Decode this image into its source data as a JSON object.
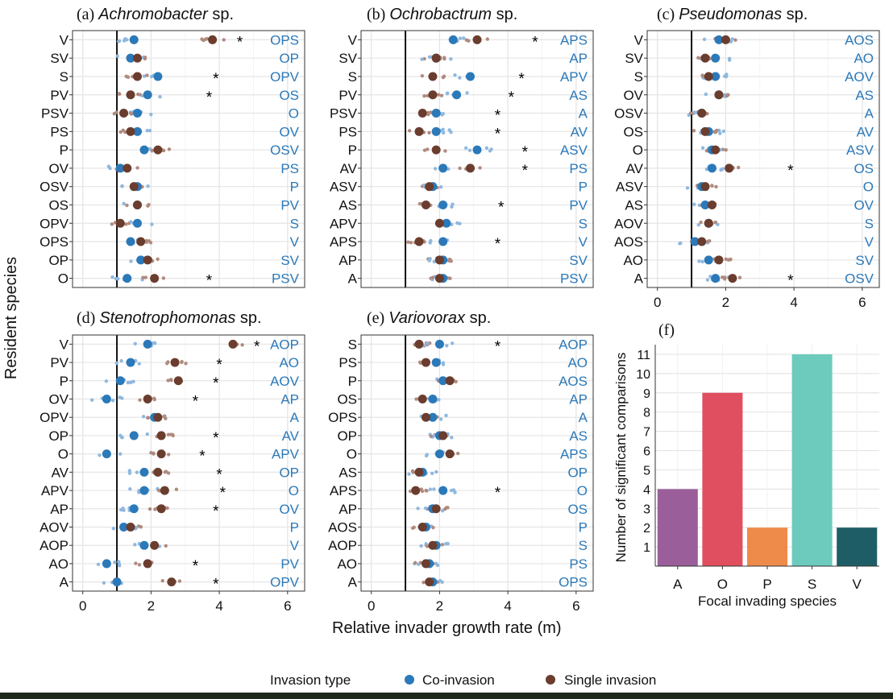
{
  "figure": {
    "y_axis_label": "Resident species",
    "x_axis_label": "Relative invader growth rate (m)",
    "legend": {
      "title": "Invasion type",
      "items": [
        {
          "label": "Co-invasion",
          "color": "#2b79b9"
        },
        {
          "label": "Single invasion",
          "color": "#6a3d2e"
        }
      ]
    },
    "colors": {
      "co": "#2b79b9",
      "co_light": "#8fb8df",
      "single": "#6a3d2e",
      "single_light": "#b08a7e",
      "label_text": "#2b79b9",
      "grid": "#e5e5e5"
    },
    "star": "*"
  },
  "chart_data": [
    {
      "type": "scatter",
      "panel": "a",
      "title_prefix": "(a)",
      "title_italic": "Achromobacter",
      "title_suffix": "sp.",
      "xlim": [
        -0.3,
        6.5
      ],
      "xticks": [
        0,
        2,
        4,
        6
      ],
      "show_xticks": false,
      "ref_line": 1,
      "rows": [
        {
          "resident": "V",
          "coinv": "OPS",
          "co": 1.5,
          "single": 3.8,
          "star": 4.6
        },
        {
          "resident": "SV",
          "coinv": "OP",
          "co": 1.4,
          "single": 1.6,
          "star": null
        },
        {
          "resident": "S",
          "coinv": "OPV",
          "co": 2.2,
          "single": 1.6,
          "star": 3.9
        },
        {
          "resident": "PV",
          "coinv": "OS",
          "co": 1.9,
          "single": 1.4,
          "star": 3.7
        },
        {
          "resident": "PSV",
          "coinv": "O",
          "co": 1.6,
          "single": 1.2,
          "star": null
        },
        {
          "resident": "PS",
          "coinv": "OV",
          "co": 1.6,
          "single": 1.4,
          "star": null
        },
        {
          "resident": "P",
          "coinv": "OSV",
          "co": 1.8,
          "single": 2.2,
          "star": null
        },
        {
          "resident": "OV",
          "coinv": "PS",
          "co": 1.1,
          "single": 1.3,
          "star": null
        },
        {
          "resident": "OSV",
          "coinv": "P",
          "co": 1.6,
          "single": 1.5,
          "star": null
        },
        {
          "resident": "OS",
          "coinv": "PV",
          "co": 1.6,
          "single": 1.6,
          "star": null
        },
        {
          "resident": "OPV",
          "coinv": "S",
          "co": 1.6,
          "single": 1.1,
          "star": null
        },
        {
          "resident": "OPS",
          "coinv": "V",
          "co": 1.4,
          "single": 1.7,
          "star": null
        },
        {
          "resident": "OP",
          "coinv": "SV",
          "co": 1.7,
          "single": 1.9,
          "star": null
        },
        {
          "resident": "O",
          "coinv": "PSV",
          "co": 1.3,
          "single": 2.1,
          "star": 3.7
        }
      ]
    },
    {
      "type": "scatter",
      "panel": "b",
      "title_prefix": "(b)",
      "title_italic": "Ochrobactrum",
      "title_suffix": "sp.",
      "xlim": [
        -0.3,
        6.5
      ],
      "xticks": [
        0,
        2,
        4,
        6
      ],
      "show_xticks": false,
      "ref_line": 1,
      "rows": [
        {
          "resident": "V",
          "coinv": "APS",
          "co": 2.4,
          "single": 3.1,
          "star": 4.8
        },
        {
          "resident": "SV",
          "coinv": "AP",
          "co": 1.9,
          "single": 1.9,
          "star": null
        },
        {
          "resident": "S",
          "coinv": "APV",
          "co": 2.9,
          "single": 1.8,
          "star": 4.4
        },
        {
          "resident": "PV",
          "coinv": "AS",
          "co": 2.5,
          "single": 1.8,
          "star": 4.1
        },
        {
          "resident": "PSV",
          "coinv": "A",
          "co": 1.9,
          "single": 1.5,
          "star": 3.7
        },
        {
          "resident": "PS",
          "coinv": "AV",
          "co": 1.9,
          "single": 1.4,
          "star": 3.7
        },
        {
          "resident": "P",
          "coinv": "ASV",
          "co": 3.1,
          "single": 1.9,
          "star": 4.5
        },
        {
          "resident": "AV",
          "coinv": "PS",
          "co": 2.1,
          "single": 2.9,
          "star": 4.5
        },
        {
          "resident": "ASV",
          "coinv": "P",
          "co": 1.8,
          "single": 1.7,
          "star": null
        },
        {
          "resident": "AS",
          "coinv": "PV",
          "co": 2.1,
          "single": 1.6,
          "star": 3.8
        },
        {
          "resident": "APV",
          "coinv": "S",
          "co": 2.2,
          "single": 2.0,
          "star": null
        },
        {
          "resident": "APS",
          "coinv": "V",
          "co": 2.1,
          "single": 1.4,
          "star": 3.7
        },
        {
          "resident": "AP",
          "coinv": "SV",
          "co": 2.1,
          "single": 2.0,
          "star": null
        },
        {
          "resident": "A",
          "coinv": "PSV",
          "co": 2.1,
          "single": 2.0,
          "star": null
        }
      ]
    },
    {
      "type": "scatter",
      "panel": "c",
      "title_prefix": "(c)",
      "title_italic": "Pseudomonas",
      "title_suffix": "sp.",
      "xlim": [
        -0.3,
        6.5
      ],
      "xticks": [
        0,
        2,
        4,
        6
      ],
      "show_xticks": true,
      "ref_line": 1,
      "rows": [
        {
          "resident": "V",
          "coinv": "AOS",
          "co": 1.8,
          "single": 2.0,
          "star": null
        },
        {
          "resident": "SV",
          "coinv": "AO",
          "co": 1.7,
          "single": 1.4,
          "star": null
        },
        {
          "resident": "S",
          "coinv": "AOV",
          "co": 1.7,
          "single": 1.5,
          "star": null
        },
        {
          "resident": "OV",
          "coinv": "AS",
          "co": 1.8,
          "single": 1.8,
          "star": null
        },
        {
          "resident": "OSV",
          "coinv": "A",
          "co": 1.3,
          "single": 1.3,
          "star": null
        },
        {
          "resident": "OS",
          "coinv": "AV",
          "co": 1.5,
          "single": 1.4,
          "star": null
        },
        {
          "resident": "O",
          "coinv": "ASV",
          "co": 1.6,
          "single": 1.7,
          "star": null
        },
        {
          "resident": "AV",
          "coinv": "OS",
          "co": 1.6,
          "single": 2.1,
          "star": 3.9
        },
        {
          "resident": "ASV",
          "coinv": "O",
          "co": 1.3,
          "single": 1.4,
          "star": null
        },
        {
          "resident": "AS",
          "coinv": "OV",
          "co": 1.4,
          "single": 1.6,
          "star": null
        },
        {
          "resident": "AOV",
          "coinv": "S",
          "co": 1.5,
          "single": 1.5,
          "star": null
        },
        {
          "resident": "AOS",
          "coinv": "V",
          "co": 1.1,
          "single": 1.3,
          "star": null
        },
        {
          "resident": "AO",
          "coinv": "SV",
          "co": 1.5,
          "single": 1.8,
          "star": null
        },
        {
          "resident": "A",
          "coinv": "OSV",
          "co": 1.7,
          "single": 2.2,
          "star": 3.9
        }
      ]
    },
    {
      "type": "scatter",
      "panel": "d",
      "title_prefix": "(d)",
      "title_italic": "Stenotrophomonas",
      "title_suffix": "sp.",
      "xlim": [
        -0.3,
        6.5
      ],
      "xticks": [
        0,
        2,
        4,
        6
      ],
      "show_xticks": true,
      "ref_line": 1,
      "rows": [
        {
          "resident": "V",
          "coinv": "AOP",
          "co": 1.9,
          "single": 4.4,
          "star": 5.1
        },
        {
          "resident": "PV",
          "coinv": "AO",
          "co": 1.4,
          "single": 2.7,
          "star": 4.0
        },
        {
          "resident": "P",
          "coinv": "AOV",
          "co": 1.1,
          "single": 2.8,
          "star": 3.9
        },
        {
          "resident": "OV",
          "coinv": "AP",
          "co": 0.7,
          "single": 1.9,
          "star": 3.3
        },
        {
          "resident": "OPV",
          "coinv": "A",
          "co": 2.1,
          "single": 2.2,
          "star": null
        },
        {
          "resident": "OP",
          "coinv": "AV",
          "co": 1.5,
          "single": 2.3,
          "star": 3.9
        },
        {
          "resident": "O",
          "coinv": "APV",
          "co": 0.7,
          "single": 2.3,
          "star": 3.5
        },
        {
          "resident": "AV",
          "coinv": "OP",
          "co": 1.8,
          "single": 2.2,
          "star": 4.0
        },
        {
          "resident": "APV",
          "coinv": "O",
          "co": 1.8,
          "single": 2.4,
          "star": 4.1
        },
        {
          "resident": "AP",
          "coinv": "OV",
          "co": 1.5,
          "single": 2.3,
          "star": 3.9
        },
        {
          "resident": "AOV",
          "coinv": "P",
          "co": 1.2,
          "single": 1.4,
          "star": null
        },
        {
          "resident": "AOP",
          "coinv": "V",
          "co": 1.8,
          "single": 2.1,
          "star": null
        },
        {
          "resident": "AO",
          "coinv": "PV",
          "co": 0.7,
          "single": 1.9,
          "star": 3.3
        },
        {
          "resident": "A",
          "coinv": "OPV",
          "co": 1.0,
          "single": 2.6,
          "star": 3.9
        }
      ]
    },
    {
      "type": "scatter",
      "panel": "e",
      "title_prefix": "(e)",
      "title_italic": "Variovorax",
      "title_suffix": "sp.",
      "xlim": [
        -0.3,
        6.5
      ],
      "xticks": [
        0,
        2,
        4,
        6
      ],
      "show_xticks": true,
      "ref_line": 1,
      "rows": [
        {
          "resident": "S",
          "coinv": "AOP",
          "co": 2.0,
          "single": 1.4,
          "star": 3.7
        },
        {
          "resident": "PS",
          "coinv": "AO",
          "co": 1.9,
          "single": 1.6,
          "star": null
        },
        {
          "resident": "P",
          "coinv": "AOS",
          "co": 2.1,
          "single": 2.3,
          "star": null
        },
        {
          "resident": "OS",
          "coinv": "AP",
          "co": 1.8,
          "single": 1.5,
          "star": null
        },
        {
          "resident": "OPS",
          "coinv": "A",
          "co": 1.8,
          "single": 1.6,
          "star": null
        },
        {
          "resident": "OP",
          "coinv": "AS",
          "co": 2.0,
          "single": 2.1,
          "star": null
        },
        {
          "resident": "O",
          "coinv": "APS",
          "co": 2.0,
          "single": 2.3,
          "star": null
        },
        {
          "resident": "AS",
          "coinv": "OP",
          "co": 1.5,
          "single": 1.4,
          "star": null
        },
        {
          "resident": "APS",
          "coinv": "O",
          "co": 2.1,
          "single": 1.3,
          "star": 3.7
        },
        {
          "resident": "AP",
          "coinv": "OS",
          "co": 1.8,
          "single": 1.9,
          "star": null
        },
        {
          "resident": "AOS",
          "coinv": "P",
          "co": 1.6,
          "single": 1.5,
          "star": null
        },
        {
          "resident": "AOP",
          "coinv": "S",
          "co": 1.9,
          "single": 1.8,
          "star": null
        },
        {
          "resident": "AO",
          "coinv": "PS",
          "co": 1.7,
          "single": 1.6,
          "star": null
        },
        {
          "resident": "A",
          "coinv": "OPS",
          "co": 1.8,
          "single": 1.7,
          "star": null
        }
      ]
    },
    {
      "type": "bar",
      "panel": "f",
      "title_prefix": "(f)",
      "categories": [
        "A",
        "O",
        "P",
        "S",
        "V"
      ],
      "values": [
        4,
        9,
        2,
        11,
        2
      ],
      "colors": [
        "#9a5f9a",
        "#e04f60",
        "#ef8b4a",
        "#6ccbbd",
        "#1f5d66"
      ],
      "ylim": [
        0,
        11.5
      ],
      "yticks": [
        1,
        2,
        3,
        4,
        5,
        6,
        7,
        8,
        9,
        10,
        11
      ],
      "xlabel": "Focal invading species",
      "ylabel": "Number of significant comparisons"
    }
  ]
}
